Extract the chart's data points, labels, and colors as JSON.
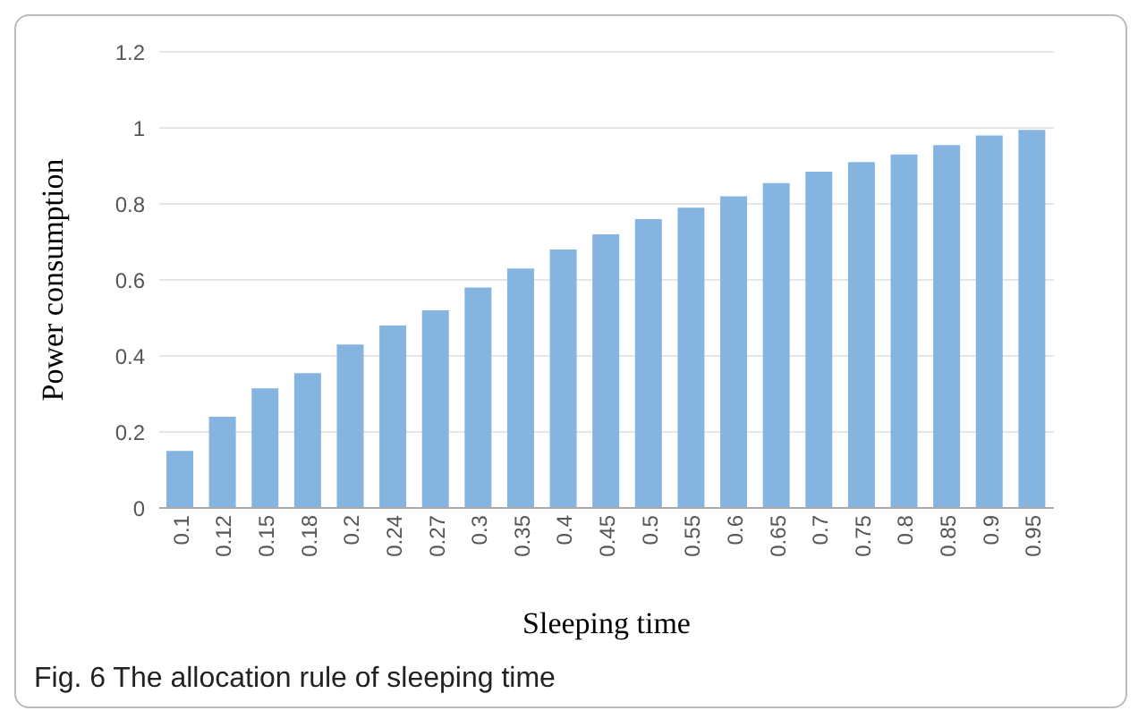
{
  "chart_data": {
    "type": "bar",
    "xlabel": "Sleeping time",
    "ylabel": "Power consumption",
    "categories": [
      "0.1",
      "0.12",
      "0.15",
      "0.18",
      "0.2",
      "0.24",
      "0.27",
      "0.3",
      "0.35",
      "0.4",
      "0.45",
      "0.5",
      "0.55",
      "0.6",
      "0.65",
      "0.7",
      "0.75",
      "0.8",
      "0.85",
      "0.9",
      "0.95"
    ],
    "values": [
      0.15,
      0.24,
      0.315,
      0.355,
      0.43,
      0.48,
      0.52,
      0.58,
      0.63,
      0.68,
      0.72,
      0.76,
      0.79,
      0.82,
      0.855,
      0.885,
      0.91,
      0.93,
      0.955,
      0.98,
      0.995
    ],
    "color": "#85b4e0",
    "ylim": [
      0,
      1.2
    ],
    "yticks": [
      0,
      0.2,
      0.4,
      0.6,
      0.8,
      1,
      1.2
    ],
    "grid": "y",
    "annotations": [
      "Fig. 6 The allocation rule of sleeping time"
    ]
  }
}
